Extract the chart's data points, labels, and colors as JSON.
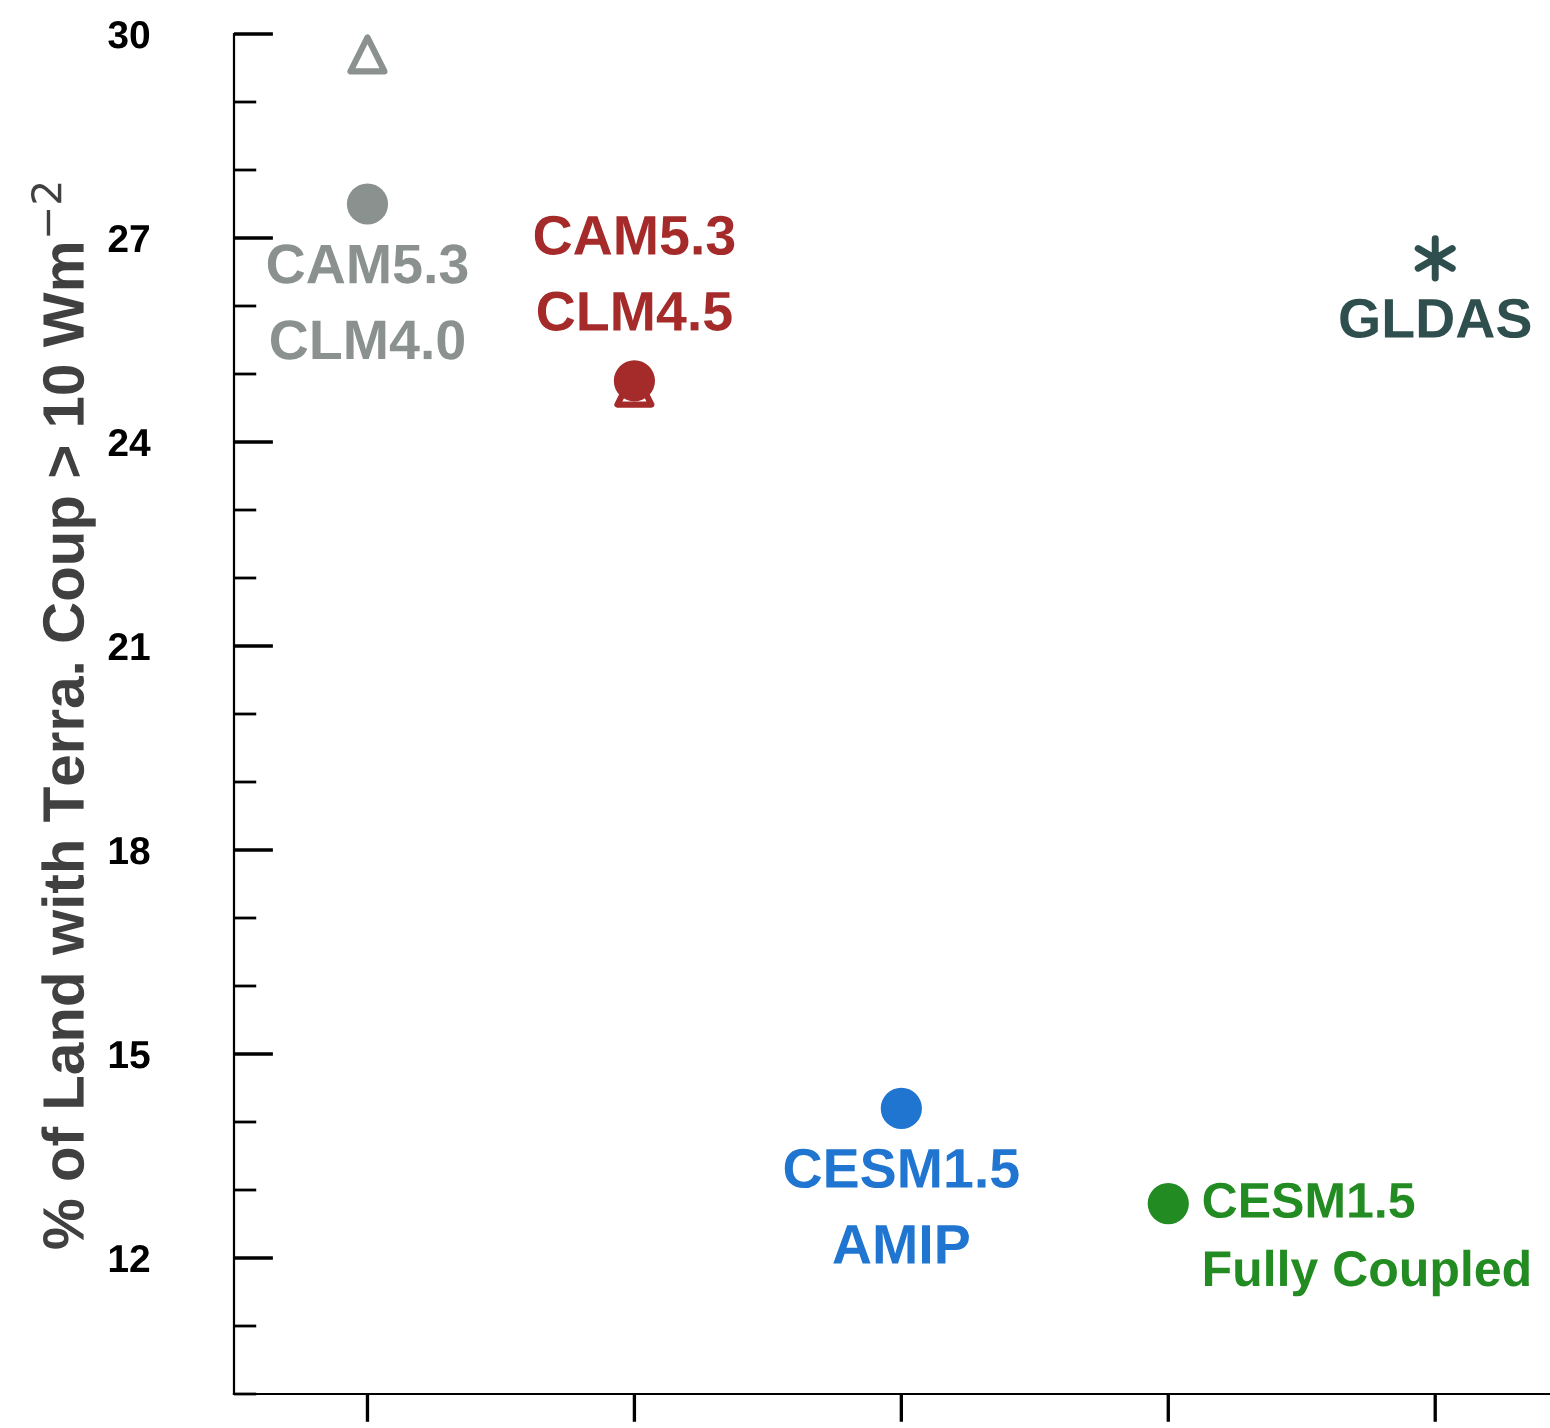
{
  "chart_data": {
    "type": "scatter",
    "ylabel": "% of Land with Terra. Coup > 10 Wm$^{−2}$",
    "categories": [
      null,
      null,
      null,
      null,
      null
    ],
    "ylim": [
      10,
      30
    ],
    "yticks": [
      12,
      15,
      18,
      21,
      24,
      27,
      30
    ],
    "tick_labels": "y",
    "grid": false,
    "legend": false,
    "series": [
      {
        "marker": "triangle",
        "color": "#8a918f",
        "values": [
          29.7,
          null,
          null,
          null,
          null
        ]
      },
      {
        "name": "CAM5.3\nCLM4.0",
        "marker": "circle",
        "color": "#8a918f",
        "values": [
          27.5,
          null,
          null,
          null,
          null
        ]
      },
      {
        "marker": "triangle",
        "color": "#a52a2a",
        "values": [
          null,
          24.8,
          null,
          null,
          null
        ]
      },
      {
        "name": "CAM5.3\nCLM4.5",
        "marker": "circle",
        "color": "#a52a2a",
        "values": [
          null,
          24.9,
          null,
          null,
          null
        ]
      },
      {
        "name": "CESM1.5\nAMIP",
        "marker": "circle",
        "color": "#1f75d0",
        "values": [
          null,
          null,
          14.2,
          null,
          null
        ]
      },
      {
        "name": "CESM1.5\nFully Coupled",
        "marker": "circle",
        "color": "#228b22",
        "values": [
          null,
          null,
          null,
          12.8,
          null
        ]
      },
      {
        "name": "GLDAS",
        "marker": "cross",
        "color": "#2f4f4f",
        "values": [
          null,
          null,
          null,
          null,
          26.7
        ]
      }
    ]
  }
}
